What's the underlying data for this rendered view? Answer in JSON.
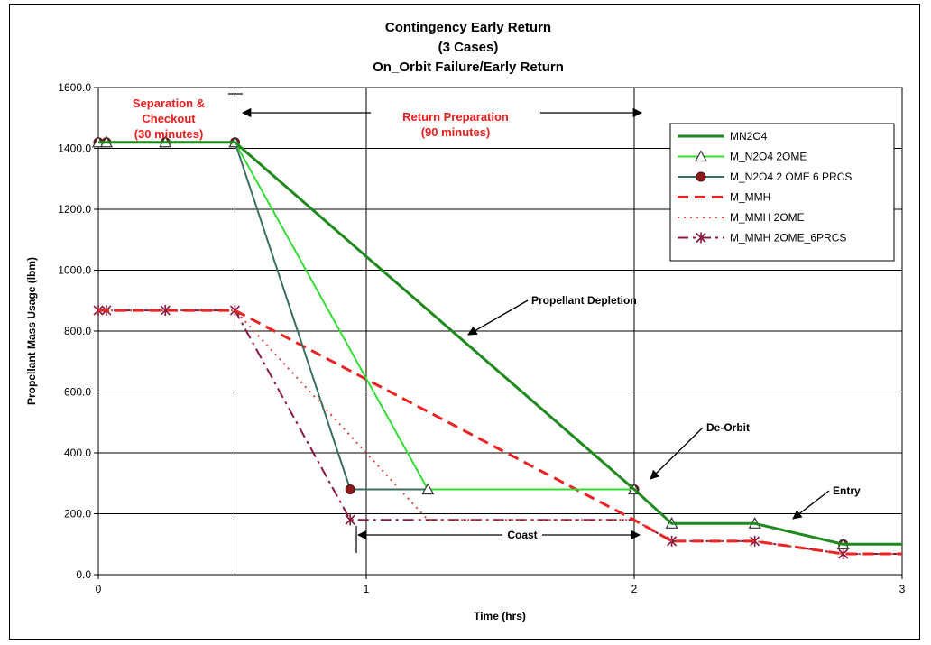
{
  "chart_data": {
    "type": "line",
    "title": [
      "Contingency Early Return",
      "(3 Cases)",
      "On_Orbit Failure/Early Return"
    ],
    "xlabel": "Time (hrs)",
    "ylabel": "Propellant Mass Usage (lbm)",
    "xlim": [
      0,
      3
    ],
    "ylim": [
      0,
      1600
    ],
    "xticks": [
      "0",
      "1",
      "2",
      "3"
    ],
    "yticks": [
      "0.0",
      "200.0",
      "400.0",
      "600.0",
      "800.0",
      "1000.0",
      "1200.0",
      "1400.0",
      "1600.0"
    ],
    "grid": true,
    "legend_position": "top-right",
    "series": [
      {
        "name": "MN2O4",
        "color": "#1e8a1e",
        "style": "solid",
        "width": 3,
        "marker": "none",
        "x": [
          0,
          0.03,
          0.25,
          0.51,
          2.0,
          2.14,
          2.45,
          2.78,
          3.0
        ],
        "y": [
          1420,
          1420,
          1420,
          1420,
          280,
          168,
          168,
          100,
          100
        ]
      },
      {
        "name": "M_N2O4 2OME",
        "color": "#33dd33",
        "style": "solid",
        "width": 2,
        "marker": "triangle",
        "x": [
          0,
          0.03,
          0.25,
          0.51,
          1.23,
          2.0,
          2.14,
          2.45,
          2.78,
          3.0
        ],
        "y": [
          1420,
          1420,
          1420,
          1420,
          280,
          280,
          168,
          168,
          100,
          100
        ],
        "marker_x": [
          0,
          0.03,
          0.25,
          0.51,
          1.23,
          2.0,
          2.14,
          2.45,
          2.78
        ]
      },
      {
        "name": "M_N2O4 2 OME 6 PRCS",
        "color": "#3a7060",
        "style": "solid",
        "width": 2,
        "marker": "circle",
        "x": [
          0,
          0.03,
          0.25,
          0.51,
          0.94,
          2.0,
          2.14,
          2.45,
          2.78,
          3.0
        ],
        "y": [
          1420,
          1420,
          1420,
          1420,
          280,
          280,
          168,
          168,
          100,
          100
        ],
        "marker_x": [
          0,
          0.03,
          0.25,
          0.51,
          0.94,
          2.0,
          2.78
        ]
      },
      {
        "name": "M_MMH",
        "color": "#ee2222",
        "style": "dash",
        "width": 3,
        "marker": "none",
        "x": [
          0,
          0.51,
          2.0,
          2.14,
          2.45,
          2.78,
          3.0
        ],
        "y": [
          868,
          868,
          180,
          110,
          110,
          68,
          68
        ]
      },
      {
        "name": "M_MMH 2OME",
        "color": "#dd4444",
        "style": "dot",
        "width": 2,
        "marker": "none",
        "x": [
          0,
          0.51,
          1.23,
          2.0,
          2.14,
          2.45,
          2.78,
          3.0
        ],
        "y": [
          868,
          868,
          180,
          180,
          110,
          110,
          68,
          68
        ]
      },
      {
        "name": "M_MMH 2OME_6PRCS",
        "color": "#8a1a3a",
        "style": "dashdot",
        "width": 2,
        "marker": "star",
        "x": [
          0,
          0.03,
          0.25,
          0.51,
          0.94,
          2.0,
          2.14,
          2.45,
          2.78,
          3.0
        ],
        "y": [
          868,
          868,
          868,
          868,
          180,
          180,
          110,
          110,
          68,
          68
        ],
        "marker_x": [
          0,
          0.03,
          0.25,
          0.51,
          0.94,
          2.14,
          2.45,
          2.78
        ]
      }
    ],
    "annotations": [
      {
        "text": [
          "Separation &",
          "Checkout",
          "(30 minutes)"
        ],
        "color": "#ee1c1c"
      },
      {
        "text": [
          "Return Preparation",
          "(90 minutes)"
        ],
        "color": "#ee1c1c"
      },
      {
        "text": "Propellant Depletion",
        "color": "#000000"
      },
      {
        "text": "De-Orbit",
        "color": "#000000"
      },
      {
        "text": "Entry",
        "color": "#000000"
      },
      {
        "text": "Coast",
        "color": "#000000"
      }
    ]
  }
}
